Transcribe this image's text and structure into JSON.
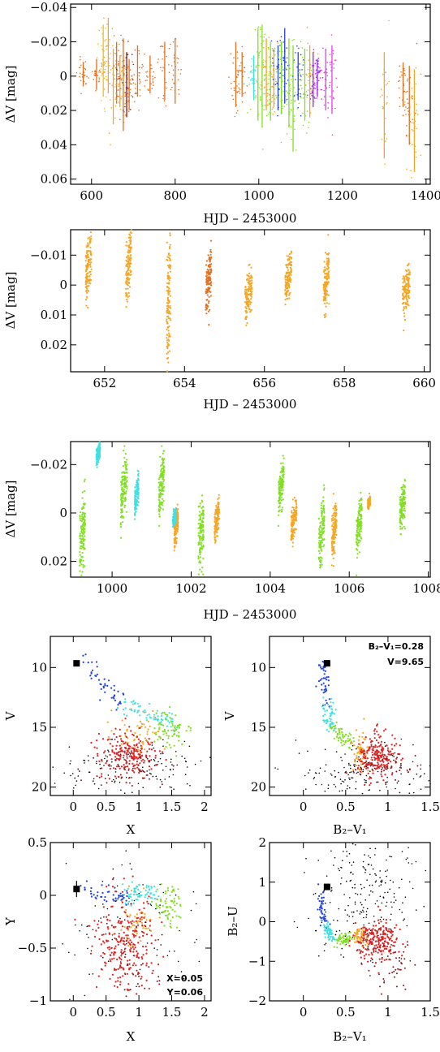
{
  "colors": {
    "orange_dark": "#e07020",
    "orange": "#f5a623",
    "yellow": "#f0c020",
    "dark_red": "#8b1a1a",
    "red": "#e02020",
    "cyan": "#40e0e0",
    "green": "#80e020",
    "blue": "#2040e0",
    "purple": "#a020f0",
    "magenta": "#e040e0",
    "black": "#000000"
  },
  "chart_data": [
    {
      "type": "scatter",
      "id": "lc_full",
      "xlabel": "HJD – 2453000",
      "ylabel": "ΔV [mag]",
      "xlim": [
        550,
        1410
      ],
      "ylim": [
        0.063,
        -0.042
      ],
      "xticks": [
        600,
        800,
        1000,
        1200,
        1400
      ],
      "xtick_labels": [
        "600",
        "800",
        "1000",
        "1200",
        "1400"
      ],
      "yticks": [
        -0.04,
        -0.02,
        0,
        0.02,
        0.04,
        0.06
      ],
      "ytick_labels": [
        "−0.04",
        "−0.02",
        "0",
        "0.02",
        "0.04",
        "0.06"
      ],
      "segments": [
        {
          "x": 580,
          "y0": -0.008,
          "y1": 0.006,
          "color": "orange_dark"
        },
        {
          "x": 612,
          "y0": -0.01,
          "y1": 0.008,
          "color": "orange_dark"
        },
        {
          "x": 628,
          "y0": -0.03,
          "y1": 0.012,
          "color": "yellow"
        },
        {
          "x": 640,
          "y0": -0.034,
          "y1": 0.01,
          "color": "orange"
        },
        {
          "x": 652,
          "y0": -0.016,
          "y1": 0.028,
          "color": "orange"
        },
        {
          "x": 660,
          "y0": -0.02,
          "y1": 0.016,
          "color": "orange_dark"
        },
        {
          "x": 668,
          "y0": -0.012,
          "y1": 0.018,
          "color": "orange"
        },
        {
          "x": 676,
          "y0": -0.022,
          "y1": 0.032,
          "color": "orange_dark"
        },
        {
          "x": 684,
          "y0": -0.014,
          "y1": 0.024,
          "color": "dark_red"
        },
        {
          "x": 690,
          "y0": -0.01,
          "y1": 0.02,
          "color": "orange_dark"
        },
        {
          "x": 710,
          "y0": -0.018,
          "y1": 0.012,
          "color": "orange_dark"
        },
        {
          "x": 740,
          "y0": -0.012,
          "y1": 0.01,
          "color": "orange_dark"
        },
        {
          "x": 775,
          "y0": -0.02,
          "y1": 0.014,
          "color": "orange_dark"
        },
        {
          "x": 800,
          "y0": -0.022,
          "y1": 0.016,
          "color": "orange_dark"
        },
        {
          "x": 945,
          "y0": -0.02,
          "y1": 0.018,
          "color": "orange_dark"
        },
        {
          "x": 960,
          "y0": -0.014,
          "y1": 0.012,
          "color": "orange_dark"
        },
        {
          "x": 988,
          "y0": -0.012,
          "y1": 0.014,
          "color": "cyan"
        },
        {
          "x": 998,
          "y0": -0.028,
          "y1": 0.026,
          "color": "green"
        },
        {
          "x": 1008,
          "y0": -0.03,
          "y1": 0.03,
          "color": "green"
        },
        {
          "x": 1018,
          "y0": -0.022,
          "y1": 0.02,
          "color": "orange"
        },
        {
          "x": 1028,
          "y0": -0.02,
          "y1": 0.026,
          "color": "green"
        },
        {
          "x": 1036,
          "y0": -0.016,
          "y1": 0.018,
          "color": "orange"
        },
        {
          "x": 1046,
          "y0": -0.018,
          "y1": 0.02,
          "color": "blue"
        },
        {
          "x": 1054,
          "y0": -0.02,
          "y1": 0.022,
          "color": "green"
        },
        {
          "x": 1062,
          "y0": -0.028,
          "y1": 0.016,
          "color": "blue"
        },
        {
          "x": 1072,
          "y0": -0.022,
          "y1": 0.03,
          "color": "green"
        },
        {
          "x": 1082,
          "y0": -0.018,
          "y1": 0.044,
          "color": "green"
        },
        {
          "x": 1094,
          "y0": -0.014,
          "y1": 0.014,
          "color": "blue"
        },
        {
          "x": 1110,
          "y0": -0.016,
          "y1": 0.026,
          "color": "green"
        },
        {
          "x": 1122,
          "y0": -0.018,
          "y1": 0.024,
          "color": "orange"
        },
        {
          "x": 1130,
          "y0": -0.014,
          "y1": 0.018,
          "color": "purple"
        },
        {
          "x": 1140,
          "y0": -0.01,
          "y1": 0.012,
          "color": "purple"
        },
        {
          "x": 1160,
          "y0": -0.016,
          "y1": 0.02,
          "color": "magenta"
        },
        {
          "x": 1175,
          "y0": -0.018,
          "y1": 0.022,
          "color": "magenta"
        },
        {
          "x": 1300,
          "y0": -0.014,
          "y1": 0.048,
          "color": "orange"
        },
        {
          "x": 1345,
          "y0": -0.008,
          "y1": 0.018,
          "color": "orange_dark"
        },
        {
          "x": 1360,
          "y0": -0.006,
          "y1": 0.04,
          "color": "orange_dark"
        },
        {
          "x": 1372,
          "y0": -0.004,
          "y1": 0.056,
          "color": "orange"
        }
      ]
    },
    {
      "type": "scatter",
      "id": "lc_zoom1",
      "xlabel": "HJD – 2453000",
      "ylabel": "ΔV [mag]",
      "xlim": [
        651.15,
        660.15
      ],
      "ylim": [
        0.029,
        -0.0185
      ],
      "xticks": [
        652,
        654,
        656,
        658,
        660
      ],
      "xtick_labels": [
        "652",
        "654",
        "656",
        "658",
        "660"
      ],
      "yticks": [
        -0.01,
        0,
        0.01,
        0.02
      ],
      "ytick_labels": [
        "−0.01",
        "0",
        "0.01",
        "0.02"
      ],
      "clumps": [
        {
          "x": 651.6,
          "y": -0.006,
          "h": 0.02,
          "w": 0.14,
          "color": "orange"
        },
        {
          "x": 652.6,
          "y": -0.007,
          "h": 0.02,
          "w": 0.14,
          "color": "orange"
        },
        {
          "x": 653.6,
          "y": 0.006,
          "h": 0.042,
          "w": 0.1,
          "color": "orange"
        },
        {
          "x": 654.6,
          "y": -0.001,
          "h": 0.018,
          "w": 0.14,
          "color": "orange_dark"
        },
        {
          "x": 655.6,
          "y": 0.003,
          "h": 0.014,
          "w": 0.18,
          "color": "orange"
        },
        {
          "x": 656.6,
          "y": -0.003,
          "h": 0.014,
          "w": 0.16,
          "color": "orange"
        },
        {
          "x": 657.55,
          "y": -0.001,
          "h": 0.016,
          "w": 0.14,
          "color": "orange"
        },
        {
          "x": 659.55,
          "y": 0.001,
          "h": 0.014,
          "w": 0.18,
          "color": "orange"
        }
      ]
    },
    {
      "type": "scatter",
      "id": "lc_zoom2",
      "xlabel": "HJD – 2453000",
      "ylabel": "ΔV [mag]",
      "xlim": [
        998.95,
        1008.05
      ],
      "ylim": [
        0.0265,
        -0.0295
      ],
      "xticks": [
        1000,
        1002,
        1004,
        1006,
        1008
      ],
      "xtick_labels": [
        "1000",
        "1002",
        "1004",
        "1006",
        "1008"
      ],
      "yticks": [
        -0.02,
        0,
        0.02
      ],
      "ytick_labels": [
        "−0.02",
        "0",
        "0.02"
      ],
      "clumps": [
        {
          "x": 999.25,
          "y": 0.008,
          "h": 0.03,
          "w": 0.14,
          "color": "green"
        },
        {
          "x": 999.65,
          "y": -0.025,
          "h": 0.008,
          "w": 0.1,
          "color": "cyan"
        },
        {
          "x": 1000.3,
          "y": -0.01,
          "h": 0.024,
          "w": 0.16,
          "color": "green"
        },
        {
          "x": 1000.62,
          "y": -0.007,
          "h": 0.014,
          "w": 0.1,
          "color": "cyan"
        },
        {
          "x": 1001.25,
          "y": -0.012,
          "h": 0.024,
          "w": 0.14,
          "color": "green"
        },
        {
          "x": 1001.62,
          "y": 0.006,
          "h": 0.012,
          "w": 0.1,
          "color": "orange"
        },
        {
          "x": 1001.58,
          "y": 0.002,
          "h": 0.006,
          "w": 0.08,
          "color": "cyan"
        },
        {
          "x": 1002.25,
          "y": 0.008,
          "h": 0.028,
          "w": 0.14,
          "color": "green"
        },
        {
          "x": 1002.65,
          "y": 0.003,
          "h": 0.014,
          "w": 0.12,
          "color": "orange"
        },
        {
          "x": 1004.28,
          "y": -0.011,
          "h": 0.018,
          "w": 0.14,
          "color": "green"
        },
        {
          "x": 1004.6,
          "y": 0.003,
          "h": 0.014,
          "w": 0.14,
          "color": "orange"
        },
        {
          "x": 1005.3,
          "y": 0.009,
          "h": 0.024,
          "w": 0.14,
          "color": "green"
        },
        {
          "x": 1005.62,
          "y": 0.007,
          "h": 0.02,
          "w": 0.12,
          "color": "orange"
        },
        {
          "x": 1006.25,
          "y": 0.005,
          "h": 0.018,
          "w": 0.14,
          "color": "green"
        },
        {
          "x": 1006.5,
          "y": -0.004,
          "h": 0.004,
          "w": 0.06,
          "color": "orange"
        },
        {
          "x": 1007.35,
          "y": -0.003,
          "h": 0.018,
          "w": 0.14,
          "color": "green"
        }
      ]
    },
    {
      "type": "scatter",
      "id": "cmd_xv",
      "xlabel": "X",
      "ylabel": "V",
      "xlim": [
        -0.35,
        2.1
      ],
      "ylim": [
        20.7,
        7.4
      ],
      "xticks": [
        0,
        0.5,
        1,
        1.5,
        2
      ],
      "xtick_labels": [
        "0",
        "0.5",
        "1",
        "1.5",
        "2"
      ],
      "yticks": [
        10,
        15,
        20
      ],
      "ytick_labels": [
        "10",
        "15",
        "20"
      ],
      "marker": {
        "x": 0.05,
        "y": 9.65
      }
    },
    {
      "type": "scatter",
      "id": "cmd_bv",
      "xlabel": "B₂–V₁",
      "ylabel": "V",
      "xlim": [
        -0.4,
        1.5
      ],
      "ylim": [
        20.7,
        7.4
      ],
      "xticks": [
        0,
        0.5,
        1,
        1.5
      ],
      "xtick_labels": [
        "0",
        "0.5",
        "1",
        "1.5"
      ],
      "yticks": [
        10,
        15,
        20
      ],
      "ytick_labels": [
        "10",
        "15",
        "20"
      ],
      "marker": {
        "x": 0.28,
        "y": 9.65
      },
      "annotations": [
        "B₂–V₁=0.28",
        "V=9.65"
      ]
    },
    {
      "type": "scatter",
      "id": "ccd_xy",
      "xlabel": "X",
      "ylabel": "Y",
      "xlim": [
        -0.35,
        2.1
      ],
      "ylim": [
        -1.0,
        0.5
      ],
      "xticks": [
        0,
        0.5,
        1,
        1.5,
        2
      ],
      "xtick_labels": [
        "0",
        "0.5",
        "1",
        "1.5",
        "2"
      ],
      "yticks": [
        0.5,
        0,
        -0.5,
        -1
      ],
      "ytick_labels": [
        "0.5",
        "0",
        "−0.5",
        "−1"
      ],
      "marker": {
        "x": 0.05,
        "y": 0.06
      },
      "annotations": [
        "X=0.05",
        "Y=0.06"
      ]
    },
    {
      "type": "scatter",
      "id": "ccd_bu",
      "xlabel": "B₂–V₁",
      "ylabel": "B₂–U",
      "xlim": [
        -0.4,
        1.5
      ],
      "ylim": [
        -2.0,
        2.0
      ],
      "xticks": [
        0,
        0.5,
        1,
        1.5
      ],
      "xtick_labels": [
        "0",
        "0.5",
        "1",
        "1.5"
      ],
      "yticks": [
        2,
        1,
        0,
        -1,
        -2
      ],
      "ytick_labels": [
        "2",
        "1",
        "0",
        "−1",
        "−2"
      ],
      "marker": {
        "x": 0.28,
        "y": 0.88
      }
    }
  ]
}
